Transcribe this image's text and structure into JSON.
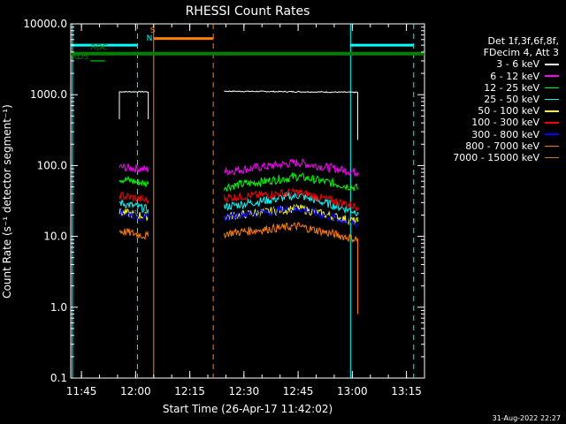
{
  "chart_data": {
    "type": "line",
    "title": "RHESSI Count Rates",
    "xlabel": "Start Time (26-Apr-17 11:42:02)",
    "ylabel": "Count Rate (s⁻¹ detector segment⁻¹)",
    "yscale": "log",
    "ylim": [
      0.1,
      10000.0
    ],
    "xlim": [
      "11:42:02",
      "13:20:00"
    ],
    "x_ticks": [
      "11:45",
      "12:00",
      "12:15",
      "12:30",
      "12:45",
      "13:00",
      "13:15"
    ],
    "y_ticks": [
      "0.1",
      "1.0",
      "10.0",
      "100.0",
      "1000.0",
      "10000.0"
    ],
    "legend_header": [
      "Det 1f,3f,6f,8f,",
      "FDecim 4, Att 3"
    ],
    "legend_position": "right",
    "series": [
      {
        "name": "3 - 6 keV",
        "color": "#ffffff",
        "segments": [
          [
            [
              "11:55:30",
              1100
            ],
            [
              "12:03:30",
              1100
            ]
          ],
          [
            [
              "12:24:30",
              1120
            ],
            [
              "12:45:00",
              1100
            ],
            [
              "13:01:30",
              1080
            ]
          ]
        ],
        "drop": [
          [
            "11:55:30",
            450
          ],
          [
            "12:03:30",
            450
          ],
          [
            "13:01:30",
            230
          ]
        ]
      },
      {
        "name": "6 - 12 keV",
        "color": "#ff00ff",
        "segments": [
          [
            [
              "11:55:30",
              95
            ],
            [
              "12:03:30",
              88
            ]
          ],
          [
            [
              "12:24:30",
              82
            ],
            [
              "12:45:00",
              110
            ],
            [
              "13:01:30",
              80
            ]
          ]
        ]
      },
      {
        "name": "12 - 25 keV",
        "color": "#00ff00",
        "segments": [
          [
            [
              "11:55:30",
              65
            ],
            [
              "12:03:30",
              55
            ]
          ],
          [
            [
              "12:24:30",
              50
            ],
            [
              "12:45:00",
              70
            ],
            [
              "13:01:30",
              48
            ]
          ]
        ]
      },
      {
        "name": "25 - 50 keV",
        "color": "#00ffff",
        "segments": [
          [
            [
              "11:55:30",
              30
            ],
            [
              "12:03:30",
              24
            ]
          ],
          [
            [
              "12:24:30",
              26
            ],
            [
              "12:45:00",
              38
            ],
            [
              "13:01:30",
              22
            ]
          ]
        ]
      },
      {
        "name": "50 - 100 keV",
        "color": "#ffff00",
        "segments": [
          [
            [
              "11:55:30",
              22
            ],
            [
              "12:03:30",
              19
            ]
          ],
          [
            [
              "12:24:30",
              19
            ],
            [
              "12:45:00",
              25
            ],
            [
              "13:01:30",
              16
            ]
          ]
        ]
      },
      {
        "name": "100 - 300 keV",
        "color": "#ff0000",
        "segments": [
          [
            [
              "11:55:30",
              38
            ],
            [
              "12:03:30",
              32
            ]
          ],
          [
            [
              "12:24:30",
              35
            ],
            [
              "12:45:00",
              42
            ],
            [
              "13:01:30",
              26
            ]
          ]
        ]
      },
      {
        "name": "300 - 800 keV",
        "color": "#0000ff",
        "segments": [
          [
            [
              "11:55:30",
              22
            ],
            [
              "12:03:30",
              18
            ]
          ],
          [
            [
              "12:24:30",
              19
            ],
            [
              "12:45:00",
              25
            ],
            [
              "13:01:30",
              15
            ]
          ]
        ]
      },
      {
        "name": "800 - 7000 keV",
        "color": "#ff8000",
        "segments": [
          [
            [
              "11:55:30",
              12
            ],
            [
              "12:03:30",
              10
            ]
          ],
          [
            [
              "12:24:30",
              11
            ],
            [
              "12:45:00",
              14
            ],
            [
              "13:01:30",
              9
            ]
          ]
        ],
        "drop": [
          [
            "13:01:30",
            0.8
          ]
        ]
      },
      {
        "name": "7000 - 15000 keV",
        "color": "#c08000",
        "segments": []
      }
    ],
    "vertical_markers": [
      {
        "time": "11:42:30",
        "color": "#00ffff",
        "style": "solid"
      },
      {
        "time": "12:00:30",
        "color": "#00ffff",
        "style": "dashed"
      },
      {
        "time": "12:05:00",
        "color": "#ff8000",
        "style": "solid"
      },
      {
        "time": "12:21:30",
        "color": "#ff8000",
        "style": "dashed"
      },
      {
        "time": "12:59:30",
        "color": "#00ffff",
        "style": "solid"
      },
      {
        "time": "13:17:00",
        "color": "#00ffff",
        "style": "dashed"
      }
    ],
    "flag_bars": [
      {
        "color": "#00ffff",
        "value": 5000,
        "width": 3,
        "segments": [
          [
            "11:42:02",
            "12:00:30"
          ],
          [
            "12:59:30",
            "13:17:00"
          ]
        ]
      },
      {
        "color": "#ff8000",
        "value": 6200,
        "width": 3,
        "segments": [
          [
            "12:05:00",
            "12:21:30"
          ]
        ]
      },
      {
        "color": "#008000",
        "value": 3800,
        "width": 4,
        "segments": [
          [
            "11:42:02",
            "13:20:00"
          ]
        ]
      },
      {
        "color": "#008000",
        "value": 3000,
        "width": 2,
        "segments": [
          [
            "11:47:30",
            "11:51:30"
          ]
        ]
      }
    ],
    "annotations": [
      {
        "text": "S",
        "color": "#ff8000",
        "time": "12:04:00",
        "value": 7500
      },
      {
        "text": "N",
        "color": "#00ffff",
        "time": "12:03:00",
        "value": 5800
      },
      {
        "text": "RDC",
        "color": "#008000",
        "time": "11:47:30",
        "value": 4300
      },
      {
        "text": "RDS",
        "color": "#008000",
        "time": "11:42:20",
        "value": 3150
      }
    ]
  },
  "timestamp": "31-Aug-2022 22:27"
}
